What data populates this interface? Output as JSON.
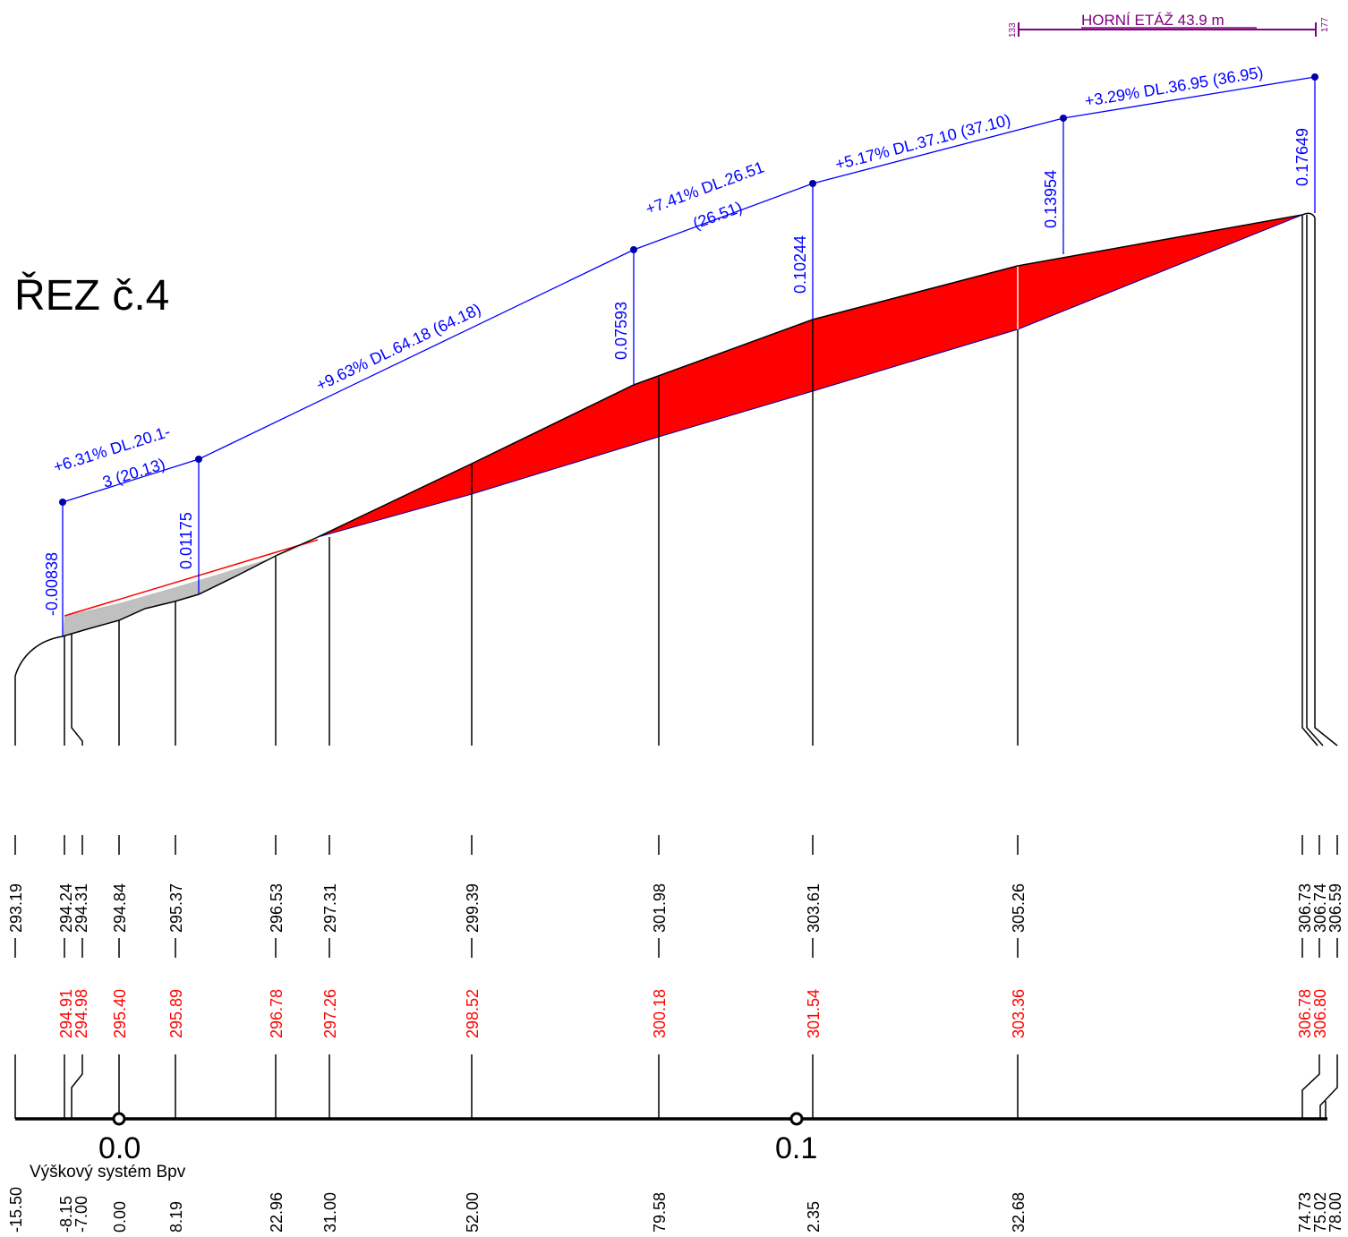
{
  "title": "ŘEZ č.4",
  "height_system": "Výškový systém Bpv",
  "etage": {
    "label": "HORNÍ ETÁŽ  43.9 m",
    "start": "133",
    "end": "177"
  },
  "km_markers": [
    "0.0",
    "0.1"
  ],
  "colors": {
    "terrain": "#000000",
    "design": "#0000ff",
    "fill": "#ff0000",
    "cut": "#c0c0c0",
    "etage": "#800080"
  },
  "stations": [
    {
      "stationing": "-15.50",
      "terrain": "293.19",
      "design": ""
    },
    {
      "stationing": "-8.15",
      "terrain": "294.24",
      "design": "294.91"
    },
    {
      "stationing": "-7.00",
      "terrain": "294.31",
      "design": "294.98"
    },
    {
      "stationing": "0.00",
      "terrain": "294.84",
      "design": "295.40"
    },
    {
      "stationing": "8.19",
      "terrain": "295.37",
      "design": "295.89"
    },
    {
      "stationing": "22.96",
      "terrain": "296.53",
      "design": "296.78"
    },
    {
      "stationing": "31.00",
      "terrain": "297.31",
      "design": "297.26"
    },
    {
      "stationing": "52.00",
      "terrain": "299.39",
      "design": "298.52"
    },
    {
      "stationing": "79.58",
      "terrain": "301.98",
      "design": "300.18"
    },
    {
      "stationing": "2.35",
      "terrain": "303.61",
      "design": "301.54"
    },
    {
      "stationing": "32.68",
      "terrain": "305.26",
      "design": "303.36"
    },
    {
      "stationing": "74.73",
      "terrain": "306.73",
      "design": "306.78"
    },
    {
      "stationing": "75.02",
      "terrain": "306.74",
      "design": "306.80"
    },
    {
      "stationing": "78.00",
      "terrain": "306.59",
      "design": ""
    }
  ],
  "grade_segments": [
    {
      "line1": "+6.31% DL.20.1-",
      "line2": "3 (20.13)"
    },
    {
      "line1": "+9.63% DL.64.18 (64.18)",
      "line2": ""
    },
    {
      "line1": "+7.41% DL.26.51",
      "line2": "(26.51)"
    },
    {
      "line1": "+5.17% DL.37.10 (37.10)",
      "line2": ""
    },
    {
      "line1": "+3.29% DL.36.95 (36.95)",
      "line2": ""
    }
  ],
  "break_points": [
    "-0.00838",
    "0.01175",
    "0.07593",
    "0.10244",
    "0.13954",
    "0.17649"
  ]
}
